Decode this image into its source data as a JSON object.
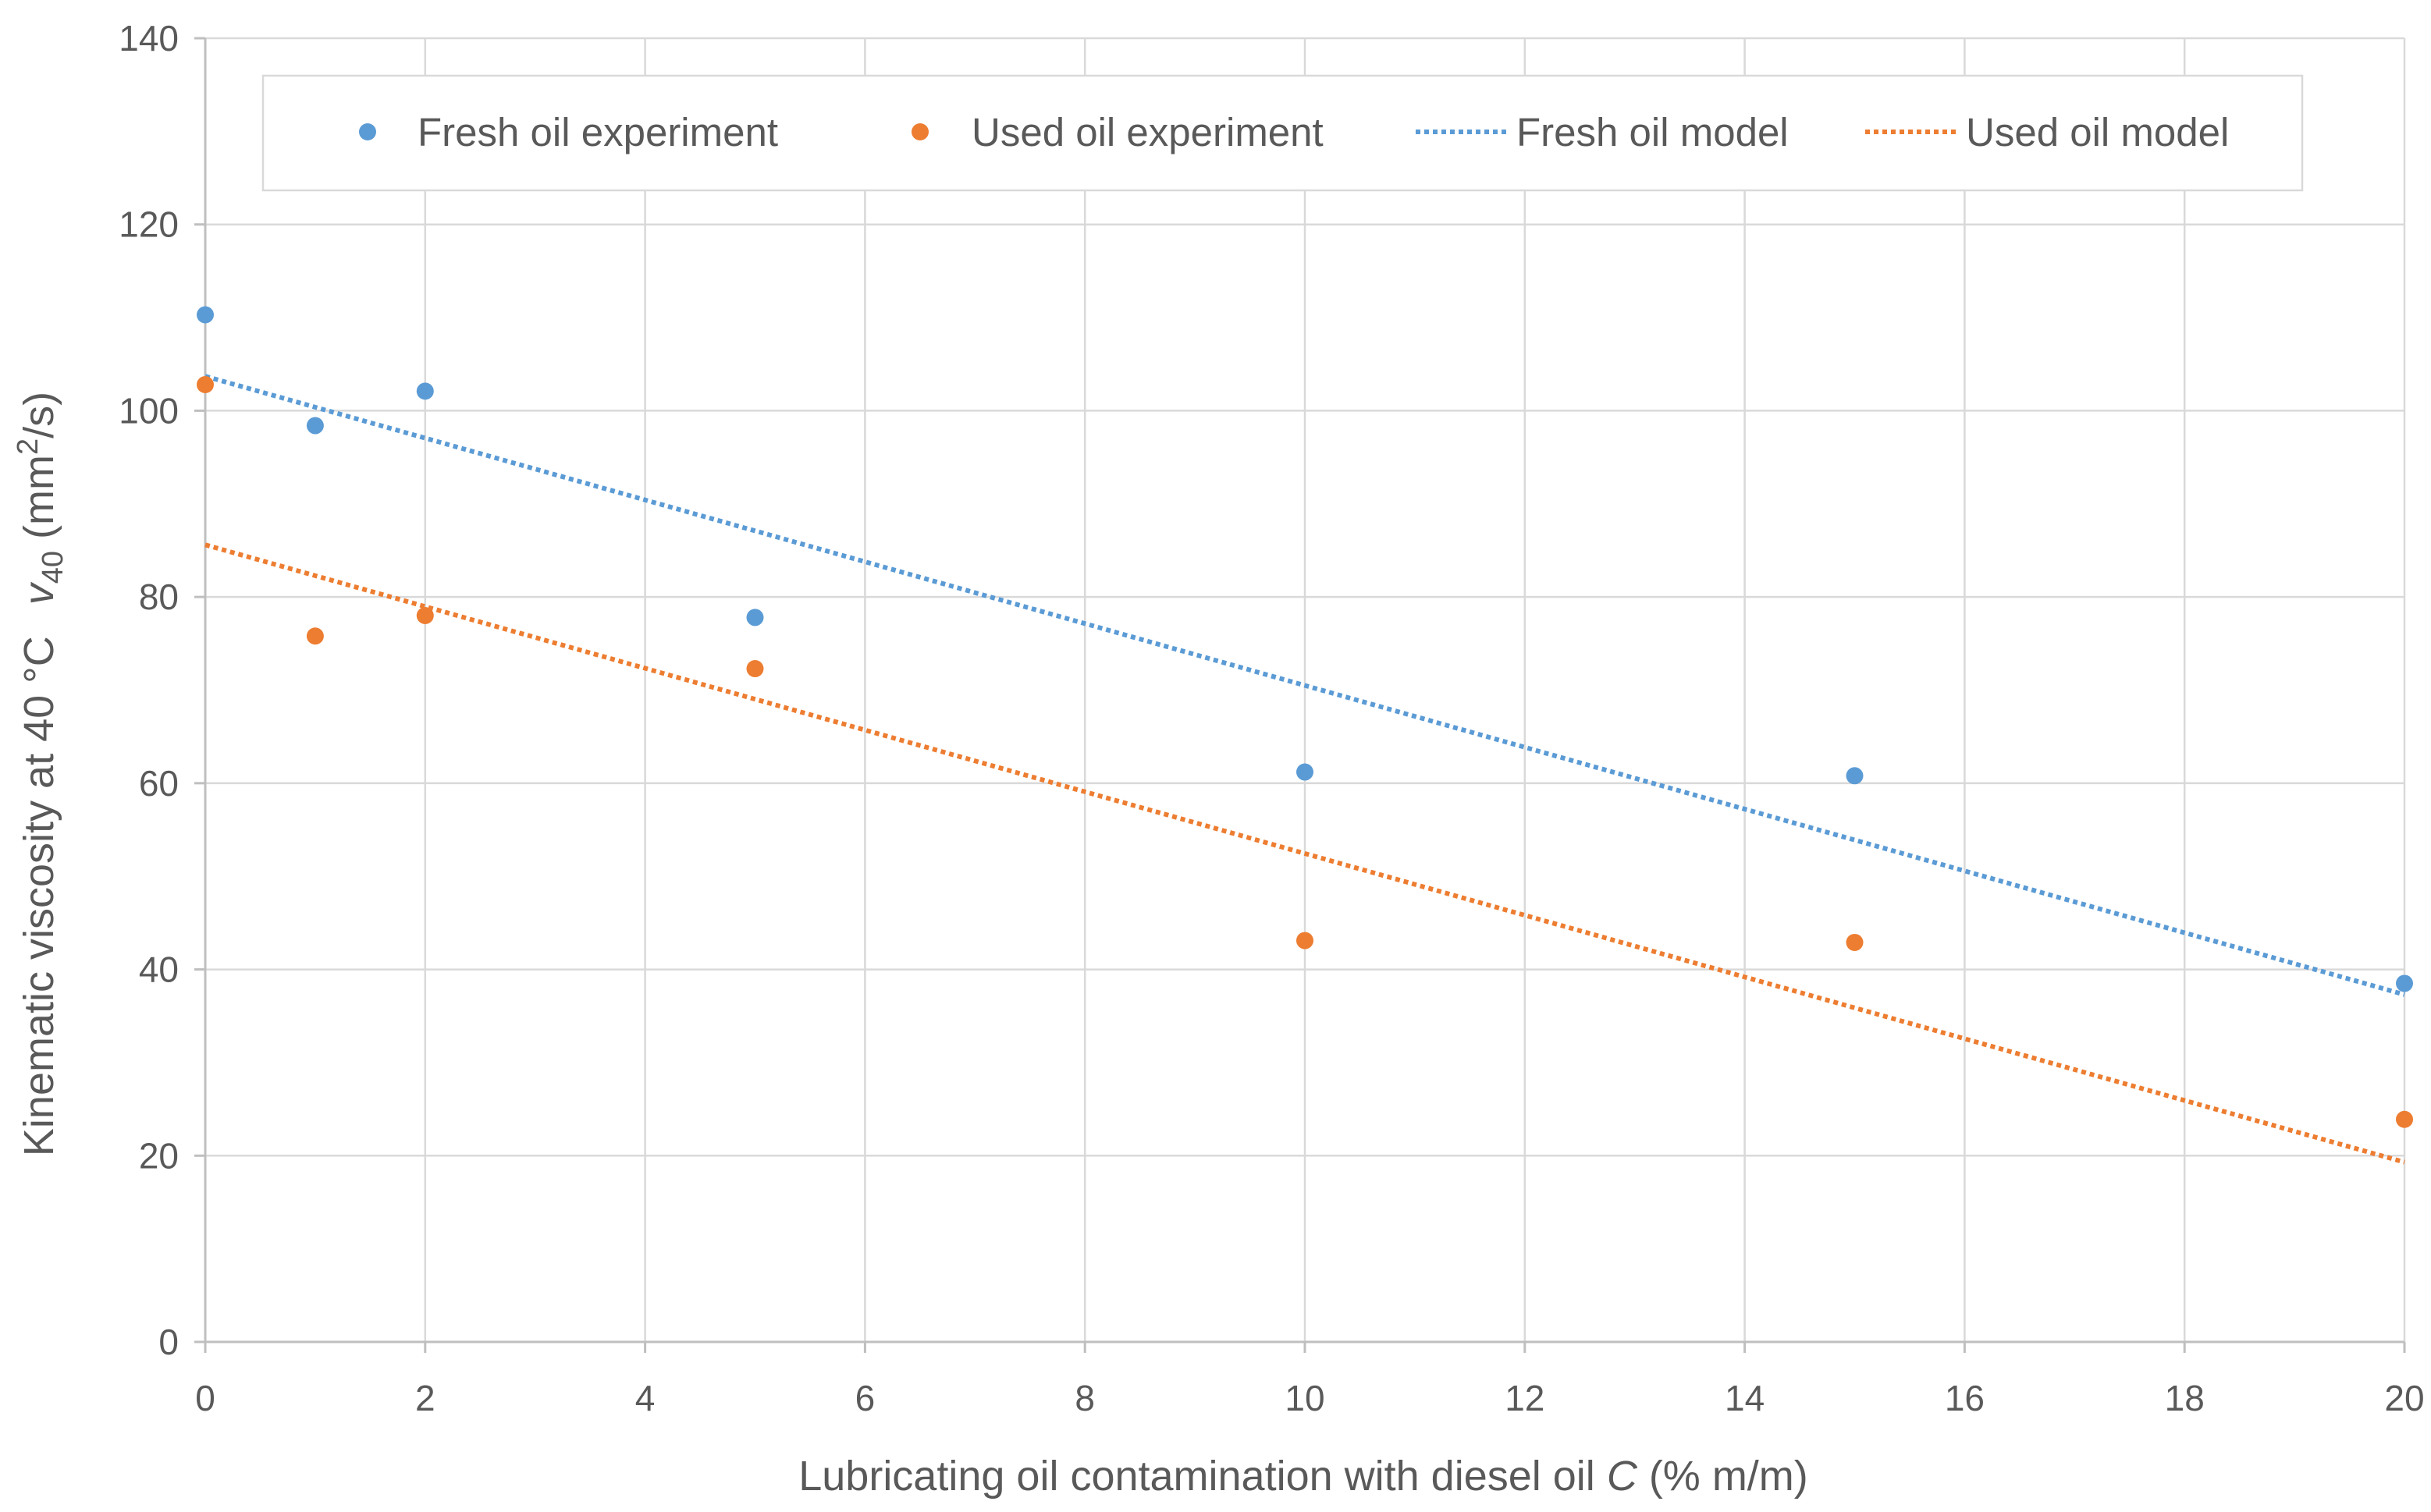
{
  "chart_data": {
    "type": "scatter",
    "title": "",
    "xlabel": {
      "prefix": "Lubricating oil contamination with diesel oil ",
      "symbol": "C",
      "suffix": " (% m/m)"
    },
    "ylabel": {
      "prefix": "Kinematic viscosity at 40 °C",
      "symbol": "v",
      "subscript": "40",
      "unit_open": " (mm",
      "unit_sup": "2",
      "unit_close": "/s)"
    },
    "xlim": [
      0,
      20
    ],
    "ylim": [
      0,
      140
    ],
    "xticks": [
      0,
      2,
      4,
      6,
      8,
      10,
      12,
      14,
      16,
      18,
      20
    ],
    "yticks": [
      0,
      20,
      40,
      60,
      80,
      100,
      120,
      140
    ],
    "grid": true,
    "legend_position": "top",
    "series": [
      {
        "name": "Fresh oil experiment",
        "kind": "scatter",
        "color": "#5b9bd5",
        "points": [
          [
            0,
            110.3
          ],
          [
            1,
            98.4
          ],
          [
            2,
            102.1
          ],
          [
            5,
            77.8
          ],
          [
            10,
            61.2
          ],
          [
            15,
            60.8
          ],
          [
            20,
            38.5
          ]
        ]
      },
      {
        "name": "Used oil experiment",
        "kind": "scatter",
        "color": "#ed7d31",
        "points": [
          [
            0,
            102.8
          ],
          [
            1,
            75.8
          ],
          [
            2,
            78.0
          ],
          [
            5,
            72.3
          ],
          [
            10,
            43.1
          ],
          [
            15,
            42.9
          ],
          [
            20,
            23.9
          ]
        ]
      },
      {
        "name": "Fresh oil model",
        "kind": "line",
        "style": "dotted",
        "color": "#5b9bd5",
        "points": [
          [
            0,
            103.7
          ],
          [
            20,
            37.3
          ]
        ]
      },
      {
        "name": "Used oil model",
        "kind": "line",
        "style": "dotted",
        "color": "#ed7d31",
        "points": [
          [
            0,
            85.6
          ],
          [
            20,
            19.3
          ]
        ]
      }
    ]
  }
}
